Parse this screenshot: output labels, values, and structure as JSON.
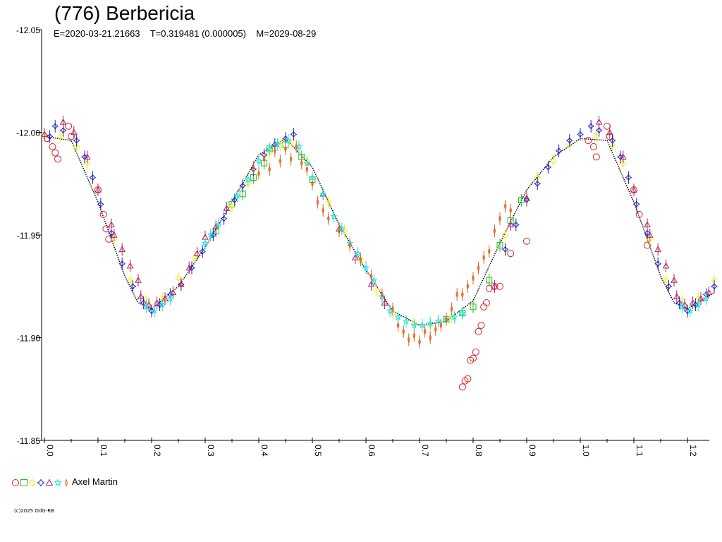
{
  "title": "(776) Berbericia",
  "subtitle": "E=2020-03-21.21663    T=0.319481 (0.000005)    M=2029-08-29",
  "legend": {
    "observer": "Axel Martin"
  },
  "copyright": "(c)2025 OdG-RB",
  "chart_data": {
    "type": "scatter",
    "title": "(776) Berbericia",
    "xlabel": "",
    "ylabel": "",
    "xlim": [
      0.0,
      1.25
    ],
    "ylim": [
      -11.85,
      -12.05
    ],
    "y_inverted": true,
    "x_ticks": [
      "0.0",
      "0.1",
      "0.2",
      "0.3",
      "0.4",
      "0.5",
      "0.6",
      "0.7",
      "0.8",
      "0.9",
      "1.0",
      "1.1",
      "1.2"
    ],
    "y_ticks": [
      "-12.05",
      "-12.00",
      "-11.95",
      "-11.90",
      "-11.85"
    ],
    "grid": false,
    "legend_position": "bottom-left",
    "fit_curve": {
      "points": [
        [
          0.0,
          -11.998
        ],
        [
          0.05,
          -11.996
        ],
        [
          0.1,
          -11.966
        ],
        [
          0.15,
          -11.93
        ],
        [
          0.175,
          -11.917
        ],
        [
          0.2,
          -11.914
        ],
        [
          0.25,
          -11.925
        ],
        [
          0.3,
          -11.944
        ],
        [
          0.35,
          -11.966
        ],
        [
          0.4,
          -11.989
        ],
        [
          0.45,
          -11.997
        ],
        [
          0.5,
          -11.983
        ],
        [
          0.55,
          -11.955
        ],
        [
          0.6,
          -11.933
        ],
        [
          0.65,
          -11.913
        ],
        [
          0.7,
          -11.906
        ],
        [
          0.75,
          -11.908
        ],
        [
          0.8,
          -11.918
        ],
        [
          0.85,
          -11.946
        ],
        [
          0.9,
          -11.972
        ],
        [
          0.95,
          -11.988
        ],
        [
          1.0,
          -11.997
        ],
        [
          1.05,
          -11.996
        ],
        [
          1.1,
          -11.966
        ],
        [
          1.15,
          -11.93
        ],
        [
          1.175,
          -11.917
        ],
        [
          1.2,
          -11.914
        ],
        [
          1.25,
          -11.922
        ]
      ]
    },
    "series": [
      {
        "marker": "circle",
        "color": "#e02020",
        "points": [
          [
            0.005,
            -11.997
          ],
          [
            0.015,
            -11.993
          ],
          [
            0.02,
            -11.99
          ],
          [
            0.025,
            -11.987
          ],
          [
            0.045,
            -12.003
          ],
          [
            0.05,
            -11.998
          ],
          [
            0.1,
            -11.972
          ],
          [
            0.11,
            -11.96
          ],
          [
            0.115,
            -11.953
          ],
          [
            0.12,
            -11.948
          ],
          [
            0.78,
            -11.876
          ],
          [
            0.785,
            -11.879
          ],
          [
            0.79,
            -11.88
          ],
          [
            0.795,
            -11.889
          ],
          [
            0.8,
            -11.89
          ],
          [
            0.805,
            -11.893
          ],
          [
            0.81,
            -11.903
          ],
          [
            0.815,
            -11.906
          ],
          [
            0.82,
            -11.915
          ],
          [
            0.825,
            -11.917
          ],
          [
            0.83,
            -11.924
          ],
          [
            0.84,
            -11.925
          ],
          [
            0.85,
            -11.925
          ],
          [
            0.87,
            -11.941
          ],
          [
            0.9,
            -11.947
          ],
          [
            1.015,
            -11.996
          ],
          [
            1.025,
            -11.993
          ],
          [
            1.03,
            -11.988
          ],
          [
            1.05,
            -12.003
          ],
          [
            1.055,
            -11.998
          ],
          [
            1.1,
            -11.972
          ],
          [
            1.11,
            -11.96
          ],
          [
            1.125,
            -11.945
          ]
        ]
      },
      {
        "marker": "square",
        "color": "#20c020",
        "points": [
          [
            0.32,
            -11.952
          ],
          [
            0.35,
            -11.965
          ],
          [
            0.37,
            -11.97
          ],
          [
            0.39,
            -11.978
          ],
          [
            0.41,
            -11.985
          ],
          [
            0.42,
            -11.992
          ],
          [
            0.45,
            -11.994
          ],
          [
            0.48,
            -11.988
          ],
          [
            0.5,
            -11.977
          ],
          [
            0.75,
            -11.909
          ],
          [
            0.78,
            -11.912
          ],
          [
            0.8,
            -11.915
          ],
          [
            0.83,
            -11.928
          ],
          [
            0.85,
            -11.945
          ],
          [
            0.87,
            -11.957
          ],
          [
            0.89,
            -11.967
          ]
        ]
      },
      {
        "marker": "diamond",
        "color": "#f0f020",
        "points": [
          [
            0.0,
            -11.999
          ],
          [
            0.03,
            -11.998
          ],
          [
            0.06,
            -11.993
          ],
          [
            0.08,
            -11.985
          ],
          [
            0.13,
            -11.948
          ],
          [
            0.16,
            -11.928
          ],
          [
            0.19,
            -11.918
          ],
          [
            0.22,
            -11.919
          ],
          [
            0.25,
            -11.929
          ],
          [
            0.28,
            -11.939
          ],
          [
            0.35,
            -11.964
          ],
          [
            0.38,
            -11.975
          ],
          [
            0.42,
            -11.99
          ],
          [
            0.44,
            -11.994
          ],
          [
            0.46,
            -11.995
          ],
          [
            0.49,
            -11.986
          ],
          [
            0.53,
            -11.966
          ],
          [
            0.56,
            -11.952
          ],
          [
            0.59,
            -11.938
          ],
          [
            0.62,
            -11.923
          ],
          [
            0.65,
            -11.912
          ],
          [
            0.69,
            -11.907
          ],
          [
            0.72,
            -11.906
          ],
          [
            0.76,
            -11.91
          ],
          [
            0.86,
            -11.95
          ],
          [
            0.92,
            -11.978
          ],
          [
            0.95,
            -11.986
          ],
          [
            0.98,
            -11.994
          ],
          [
            1.03,
            -11.998
          ],
          [
            1.06,
            -11.994
          ],
          [
            1.08,
            -11.985
          ],
          [
            1.13,
            -11.948
          ],
          [
            1.16,
            -11.928
          ],
          [
            1.19,
            -11.918
          ],
          [
            1.22,
            -11.919
          ],
          [
            1.25,
            -11.928
          ]
        ]
      },
      {
        "marker": "star4",
        "color": "#2020c0",
        "points": [
          [
            0.01,
            -11.998
          ],
          [
            0.02,
            -12.003
          ],
          [
            0.035,
            -12.001
          ],
          [
            0.06,
            -11.996
          ],
          [
            0.075,
            -11.988
          ],
          [
            0.09,
            -11.978
          ],
          [
            0.105,
            -11.965
          ],
          [
            0.125,
            -11.951
          ],
          [
            0.145,
            -11.936
          ],
          [
            0.165,
            -11.925
          ],
          [
            0.185,
            -11.917
          ],
          [
            0.2,
            -11.913
          ],
          [
            0.215,
            -11.916
          ],
          [
            0.235,
            -11.921
          ],
          [
            0.255,
            -11.926
          ],
          [
            0.275,
            -11.934
          ],
          [
            0.295,
            -11.942
          ],
          [
            0.315,
            -11.95
          ],
          [
            0.335,
            -11.958
          ],
          [
            0.355,
            -11.967
          ],
          [
            0.37,
            -11.974
          ],
          [
            0.39,
            -11.982
          ],
          [
            0.41,
            -11.989
          ],
          [
            0.43,
            -11.994
          ],
          [
            0.45,
            -11.997
          ],
          [
            0.465,
            -11.999
          ],
          [
            0.86,
            -11.943
          ],
          [
            0.88,
            -11.955
          ],
          [
            0.9,
            -11.967
          ],
          [
            0.92,
            -11.975
          ],
          [
            0.94,
            -11.983
          ],
          [
            0.96,
            -11.991
          ],
          [
            0.98,
            -11.996
          ],
          [
            1.0,
            -11.999
          ],
          [
            1.02,
            -12.003
          ],
          [
            1.035,
            -12.001
          ],
          [
            1.06,
            -11.996
          ],
          [
            1.075,
            -11.988
          ],
          [
            1.09,
            -11.978
          ],
          [
            1.105,
            -11.965
          ],
          [
            1.125,
            -11.951
          ],
          [
            1.145,
            -11.936
          ],
          [
            1.165,
            -11.925
          ],
          [
            1.185,
            -11.917
          ],
          [
            1.2,
            -11.913
          ],
          [
            1.215,
            -11.916
          ],
          [
            1.235,
            -11.921
          ],
          [
            1.25,
            -11.925
          ]
        ]
      },
      {
        "marker": "triangle",
        "color": "#b02060",
        "points": [
          [
            0.0,
            -11.999
          ],
          [
            0.035,
            -12.005
          ],
          [
            0.055,
            -12.0
          ],
          [
            0.08,
            -11.988
          ],
          [
            0.1,
            -11.972
          ],
          [
            0.125,
            -11.955
          ],
          [
            0.13,
            -11.95
          ],
          [
            0.145,
            -11.943
          ],
          [
            0.16,
            -11.935
          ],
          [
            0.175,
            -11.928
          ],
          [
            0.18,
            -11.92
          ],
          [
            0.195,
            -11.916
          ],
          [
            0.21,
            -11.917
          ],
          [
            0.225,
            -11.919
          ],
          [
            0.24,
            -11.922
          ],
          [
            0.255,
            -11.926
          ],
          [
            0.27,
            -11.934
          ],
          [
            0.285,
            -11.941
          ],
          [
            0.3,
            -11.949
          ],
          [
            0.32,
            -11.954
          ],
          [
            0.34,
            -11.963
          ],
          [
            0.52,
            -11.97
          ],
          [
            0.55,
            -11.953
          ],
          [
            0.58,
            -11.939
          ],
          [
            0.61,
            -11.926
          ],
          [
            0.635,
            -11.917
          ],
          [
            0.84,
            -11.925
          ],
          [
            0.87,
            -11.955
          ],
          [
            0.9,
            -11.968
          ],
          [
            1.035,
            -12.005
          ],
          [
            1.055,
            -12.0
          ],
          [
            1.08,
            -11.988
          ],
          [
            1.1,
            -11.972
          ],
          [
            1.125,
            -11.955
          ],
          [
            1.13,
            -11.95
          ],
          [
            1.145,
            -11.943
          ],
          [
            1.16,
            -11.935
          ],
          [
            1.175,
            -11.928
          ],
          [
            1.18,
            -11.92
          ],
          [
            1.195,
            -11.916
          ],
          [
            1.21,
            -11.917
          ],
          [
            1.225,
            -11.919
          ],
          [
            1.24,
            -11.922
          ]
        ]
      },
      {
        "marker": "star5",
        "color": "#20e0e0",
        "points": [
          [
            0.19,
            -11.915
          ],
          [
            0.205,
            -11.913
          ],
          [
            0.22,
            -11.916
          ],
          [
            0.235,
            -11.919
          ],
          [
            0.3,
            -11.946
          ],
          [
            0.31,
            -11.95
          ],
          [
            0.325,
            -11.955
          ],
          [
            0.36,
            -11.969
          ],
          [
            0.38,
            -11.977
          ],
          [
            0.4,
            -11.986
          ],
          [
            0.42,
            -11.992
          ],
          [
            0.435,
            -11.994
          ],
          [
            0.455,
            -11.996
          ],
          [
            0.475,
            -11.993
          ],
          [
            0.49,
            -11.985
          ],
          [
            0.5,
            -11.978
          ],
          [
            0.52,
            -11.97
          ],
          [
            0.54,
            -11.959
          ],
          [
            0.555,
            -11.953
          ],
          [
            0.57,
            -11.946
          ],
          [
            0.585,
            -11.941
          ],
          [
            0.6,
            -11.934
          ],
          [
            0.615,
            -11.928
          ],
          [
            0.63,
            -11.92
          ],
          [
            0.645,
            -11.913
          ],
          [
            0.66,
            -11.91
          ],
          [
            0.675,
            -11.908
          ],
          [
            0.69,
            -11.906
          ],
          [
            0.705,
            -11.906
          ],
          [
            0.72,
            -11.907
          ],
          [
            0.735,
            -11.908
          ],
          [
            0.75,
            -11.909
          ],
          [
            0.765,
            -11.91
          ],
          [
            0.78,
            -11.912
          ],
          [
            1.19,
            -11.915
          ],
          [
            1.205,
            -11.913
          ],
          [
            1.22,
            -11.916
          ],
          [
            1.235,
            -11.919
          ]
        ]
      },
      {
        "marker": "tri-star",
        "color": "#e06020",
        "points": [
          [
            0.39,
            -11.983
          ],
          [
            0.4,
            -11.98
          ],
          [
            0.41,
            -11.987
          ],
          [
            0.42,
            -11.982
          ],
          [
            0.43,
            -11.991
          ],
          [
            0.44,
            -11.986
          ],
          [
            0.45,
            -11.992
          ],
          [
            0.46,
            -11.987
          ],
          [
            0.47,
            -11.993
          ],
          [
            0.48,
            -11.985
          ],
          [
            0.49,
            -11.982
          ],
          [
            0.5,
            -11.975
          ],
          [
            0.51,
            -11.966
          ],
          [
            0.52,
            -11.962
          ],
          [
            0.53,
            -11.958
          ],
          [
            0.55,
            -11.952
          ],
          [
            0.57,
            -11.945
          ],
          [
            0.59,
            -11.938
          ],
          [
            0.61,
            -11.93
          ],
          [
            0.63,
            -11.921
          ],
          [
            0.65,
            -11.914
          ],
          [
            0.66,
            -11.906
          ],
          [
            0.67,
            -11.903
          ],
          [
            0.68,
            -11.899
          ],
          [
            0.69,
            -11.901
          ],
          [
            0.7,
            -11.898
          ],
          [
            0.71,
            -11.903
          ],
          [
            0.72,
            -11.9
          ],
          [
            0.73,
            -11.904
          ],
          [
            0.74,
            -11.906
          ],
          [
            0.75,
            -11.909
          ],
          [
            0.76,
            -11.914
          ],
          [
            0.77,
            -11.921
          ],
          [
            0.78,
            -11.921
          ],
          [
            0.79,
            -11.925
          ],
          [
            0.8,
            -11.929
          ],
          [
            0.81,
            -11.934
          ],
          [
            0.82,
            -11.939
          ],
          [
            0.83,
            -11.942
          ],
          [
            0.84,
            -11.952
          ],
          [
            0.85,
            -11.958
          ],
          [
            0.86,
            -11.964
          ],
          [
            0.87,
            -11.962
          ]
        ]
      }
    ]
  }
}
